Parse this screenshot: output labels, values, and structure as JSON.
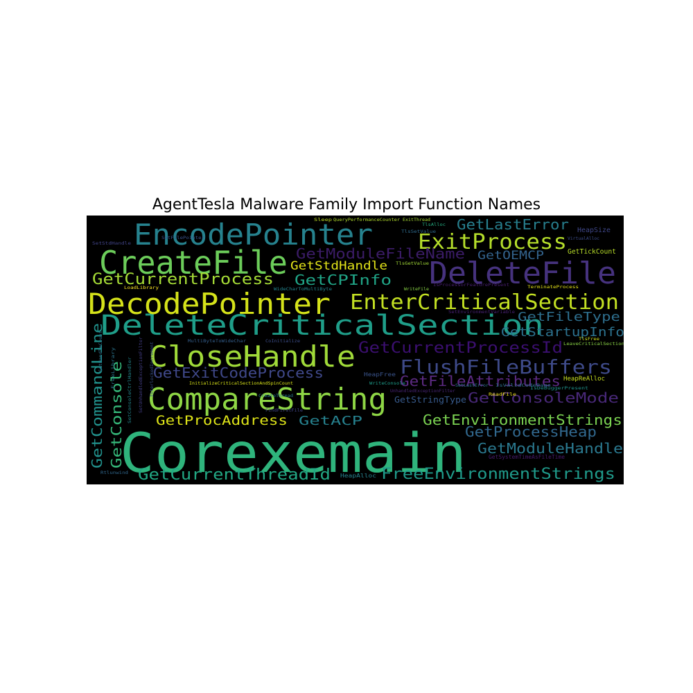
{
  "chart_data": {
    "type": "wordcloud",
    "title": "AgentTesla Malware Family Import Function Names",
    "background": "#000000",
    "colormap": "viridis",
    "words": [
      {
        "text": "Corexemain",
        "weight": 100,
        "color": "#2fb47c"
      },
      {
        "text": "DeleteCriticalSection",
        "weight": 55,
        "color": "#1f9e89"
      },
      {
        "text": "DecodePointer",
        "weight": 50,
        "color": "#d5e21a"
      },
      {
        "text": "CompareString",
        "weight": 47,
        "color": "#8ed645"
      },
      {
        "text": "CreateFile",
        "weight": 46,
        "color": "#6ccd5a"
      },
      {
        "text": "CloseHandle",
        "weight": 45,
        "color": "#a0da39"
      },
      {
        "text": "EncodePointer",
        "weight": 45,
        "color": "#26828e"
      },
      {
        "text": "DeleteFile",
        "weight": 43,
        "color": "#46327e"
      },
      {
        "text": "EnterCriticalSection",
        "weight": 34,
        "color": "#c2df23"
      },
      {
        "text": "ExitProcess",
        "weight": 33,
        "color": "#b5de2b"
      },
      {
        "text": "FlushFileBuffers",
        "weight": 30,
        "color": "#3e4a89"
      },
      {
        "text": "GetCommandLine",
        "weight": 26,
        "color": "#21918c"
      },
      {
        "text": "GetCurrentProcessId",
        "weight": 25,
        "color": "#3b0f70"
      },
      {
        "text": "GetConsole",
        "weight": 24,
        "color": "#35b779"
      },
      {
        "text": "GetCurrentProcess",
        "weight": 23,
        "color": "#a5db36"
      },
      {
        "text": "GetCurrentThreadId",
        "weight": 23,
        "color": "#22a884"
      },
      {
        "text": "FreeEnvironmentStrings",
        "weight": 23,
        "color": "#1f9a8a"
      },
      {
        "text": "GetCPInfo",
        "weight": 22,
        "color": "#20a486"
      },
      {
        "text": "GetEnvironmentStrings",
        "weight": 21,
        "color": "#7ad151"
      },
      {
        "text": "GetConsoleMode",
        "weight": 21,
        "color": "#482878"
      },
      {
        "text": "GetModuleHandle",
        "weight": 21,
        "color": "#2a788e"
      },
      {
        "text": "GetModuleFileName",
        "weight": 21,
        "color": "#3b1c67"
      },
      {
        "text": "GetLastError",
        "weight": 20,
        "color": "#277f8e"
      },
      {
        "text": "GetProcessHeap",
        "weight": 20,
        "color": "#31688e"
      },
      {
        "text": "GetFileAttributes",
        "weight": 20,
        "color": "#5c2a82"
      },
      {
        "text": "GetExitCodeProcess",
        "weight": 20,
        "color": "#3f4889"
      },
      {
        "text": "GetProcAddress",
        "weight": 19,
        "color": "#dde318"
      },
      {
        "text": "GetStartupInfo",
        "weight": 18,
        "color": "#2c728e"
      },
      {
        "text": "GetFileType",
        "weight": 18,
        "color": "#2e6f8e"
      },
      {
        "text": "GetACP",
        "weight": 18,
        "color": "#26818e"
      },
      {
        "text": "GetStdHandle",
        "weight": 18,
        "color": "#e3e419"
      },
      {
        "text": "GetOEMCP",
        "weight": 17,
        "color": "#33638d"
      },
      {
        "text": "GetStringType",
        "weight": 12,
        "color": "#375a8c"
      },
      {
        "text": "GetTickCount",
        "weight": 9,
        "color": "#b8de29"
      },
      {
        "text": "HeapSize",
        "weight": 9,
        "color": "#3f4788"
      },
      {
        "text": "HeapReAlloc",
        "weight": 8,
        "color": "#c8e020"
      },
      {
        "text": "HeapFree",
        "weight": 8,
        "color": "#3a548c"
      },
      {
        "text": "HeapAlloc",
        "weight": 8,
        "color": "#26828e"
      },
      {
        "text": "GetSystemTimeAsFileTime",
        "weight": 8,
        "color": "#481a6c"
      },
      {
        "text": "InitializeCriticalSectionAndSpinCount",
        "weight": 6,
        "color": "#d8e219"
      },
      {
        "text": "IsDebuggerPresent",
        "weight": 6,
        "color": "#20928c"
      },
      {
        "text": "IsValidCodePage",
        "weight": 6,
        "color": "#2d708e"
      },
      {
        "text": "LeaveCriticalSection",
        "weight": 6,
        "color": "#8bd646"
      },
      {
        "text": "LoadLibrary",
        "weight": 6,
        "color": "#fde725"
      },
      {
        "text": "MultiByteToWideChar",
        "weight": 6,
        "color": "#355f8d"
      },
      {
        "text": "QueryPerformanceCounter",
        "weight": 6,
        "color": "#b2dd2d"
      },
      {
        "text": "ReadFile",
        "weight": 6,
        "color": "#f1e51d"
      },
      {
        "text": "SetEnvironmentVariable",
        "weight": 6,
        "color": "#482173"
      },
      {
        "text": "SetFilePointer",
        "weight": 6,
        "color": "#3a538b"
      },
      {
        "text": "SetLastError",
        "weight": 6,
        "color": "#2a768e"
      },
      {
        "text": "SetStdHandle",
        "weight": 6,
        "color": "#414487"
      },
      {
        "text": "SetHandleCount",
        "weight": 6,
        "color": "#2c738e"
      },
      {
        "text": "Sleep",
        "weight": 6,
        "color": "#c0df25"
      },
      {
        "text": "TerminateProcess",
        "weight": 6,
        "color": "#e5e419"
      },
      {
        "text": "TlsAlloc",
        "weight": 6,
        "color": "#26ad81"
      },
      {
        "text": "TlsFree",
        "weight": 6,
        "color": "#d2e21b"
      },
      {
        "text": "TlsGetValue",
        "weight": 6,
        "color": "#a2da37"
      },
      {
        "text": "TlsSetValue",
        "weight": 6,
        "color": "#2f6c8e"
      },
      {
        "text": "UnhandledExceptionFilter",
        "weight": 6,
        "color": "#482576"
      },
      {
        "text": "WideCharToMultiByte",
        "weight": 6,
        "color": "#25858e"
      },
      {
        "text": "WriteFile",
        "weight": 6,
        "color": "#8bd646"
      },
      {
        "text": "WriteConsole",
        "weight": 6,
        "color": "#1e9c89"
      },
      {
        "text": "VirtualAlloc",
        "weight": 6,
        "color": "#3d4d8a"
      },
      {
        "text": "Rtlunwind",
        "weight": 6,
        "color": "#31688e"
      },
      {
        "text": "ExitThread",
        "weight": 6,
        "color": "#a8db34"
      },
      {
        "text": "CreateThread",
        "weight": 6,
        "color": "#2a788e"
      },
      {
        "text": "FindFirstFile",
        "weight": 6,
        "color": "#404688"
      },
      {
        "text": "SetConsoleCtrlHandler",
        "weight": 6,
        "color": "#24878e"
      },
      {
        "text": "IsProcessorFeaturePresent",
        "weight": 6,
        "color": "#481f70"
      },
      {
        "text": "SetUnhandledExceptionFilter",
        "weight": 6,
        "color": "#433e85"
      },
      {
        "text": "CoInitialize",
        "weight": 6,
        "color": "#3d4e8a"
      },
      {
        "text": "InterlockedIncrement",
        "weight": 6,
        "color": "#3b528b"
      },
      {
        "text": "FreeLibrary",
        "weight": 6,
        "color": "#2b758e"
      }
    ]
  }
}
